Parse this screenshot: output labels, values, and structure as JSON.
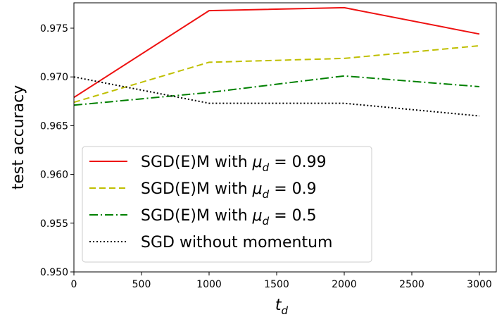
{
  "chart_data": {
    "type": "line",
    "xlabel_base": "t",
    "xlabel_sub": "d",
    "ylabel": "test accuracy",
    "xlim": [
      0,
      3125
    ],
    "ylim": [
      0.95,
      0.9776
    ],
    "xticks": [
      0,
      500,
      1000,
      1500,
      2000,
      2500,
      3000
    ],
    "xtick_labels": [
      "0",
      "500",
      "1000",
      "1500",
      "2000",
      "2500",
      "3000"
    ],
    "yticks": [
      0.95,
      0.955,
      0.96,
      0.965,
      0.97,
      0.975
    ],
    "ytick_labels": [
      "0.950",
      "0.955",
      "0.960",
      "0.965",
      "0.970",
      "0.975"
    ],
    "grid": false,
    "legend_position": "lower-left",
    "x": [
      0,
      1000,
      2000,
      3000
    ],
    "series": [
      {
        "label_prefix": "SGD(E)M with ",
        "label_symbol": "μ",
        "label_sub": "d",
        "label_value": " = 0.99",
        "color": "#ee1111",
        "dash": "",
        "values": [
          0.9679,
          0.9768,
          0.9771,
          0.9744
        ]
      },
      {
        "label_prefix": "SGD(E)M with ",
        "label_symbol": "μ",
        "label_sub": "d",
        "label_value": " = 0.9",
        "color": "#bfbf00",
        "dash": "9 5",
        "values": [
          0.9674,
          0.9715,
          0.9719,
          0.9732
        ]
      },
      {
        "label_prefix": "SGD(E)M with ",
        "label_symbol": "μ",
        "label_sub": "d",
        "label_value": " = 0.5",
        "color": "#008000",
        "dash": "12 4 2 4",
        "values": [
          0.9671,
          0.9684,
          0.9701,
          0.969
        ]
      },
      {
        "label_prefix": "SGD without momentum",
        "label_symbol": "",
        "label_sub": "",
        "label_value": "",
        "color": "#000000",
        "dash": "2 3",
        "values": [
          0.97,
          0.9673,
          0.9673,
          0.966
        ]
      }
    ]
  }
}
